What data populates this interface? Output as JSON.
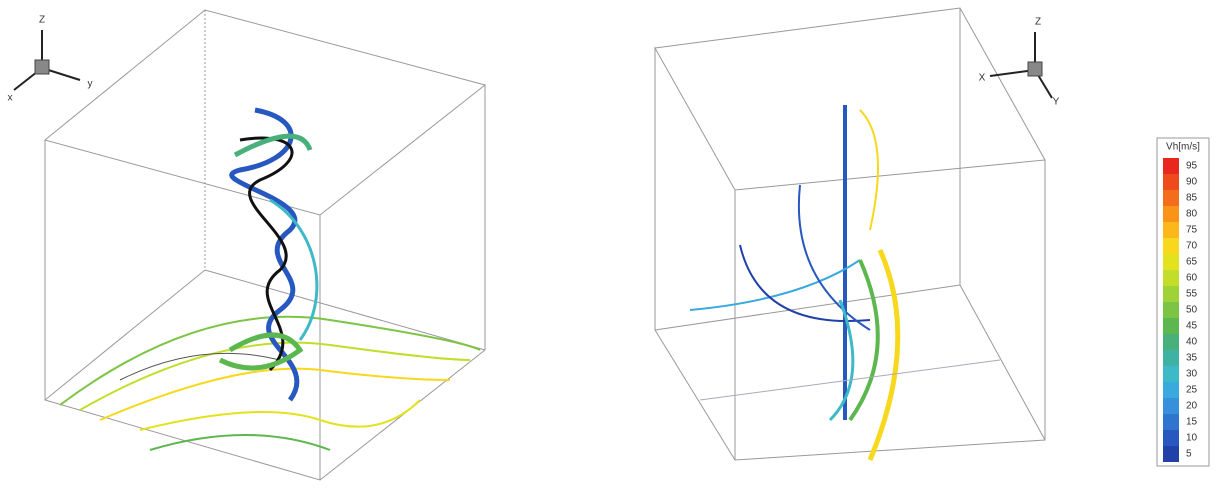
{
  "left_panel": {
    "axes": {
      "z": "Z",
      "y": "y",
      "x": "x"
    }
  },
  "right_panel": {
    "axes": {
      "z": "Z",
      "x": "X",
      "y": "Y"
    }
  },
  "colorbar": {
    "title": "Vh[m/s]",
    "labels": [
      95,
      90,
      85,
      80,
      75,
      70,
      65,
      60,
      55,
      50,
      45,
      40,
      35,
      30,
      25,
      20,
      15,
      10,
      5
    ],
    "colors": [
      "#e8281e",
      "#ee4a1c",
      "#f46d1a",
      "#f99419",
      "#fcb81a",
      "#f8d81c",
      "#e2e21e",
      "#c2dd2a",
      "#9ed237",
      "#7cc443",
      "#5cb84e",
      "#48b07a",
      "#3fb3a3",
      "#3db9c8",
      "#3aa9de",
      "#3690dc",
      "#2f74cf",
      "#2758bf",
      "#2140a8"
    ]
  }
}
